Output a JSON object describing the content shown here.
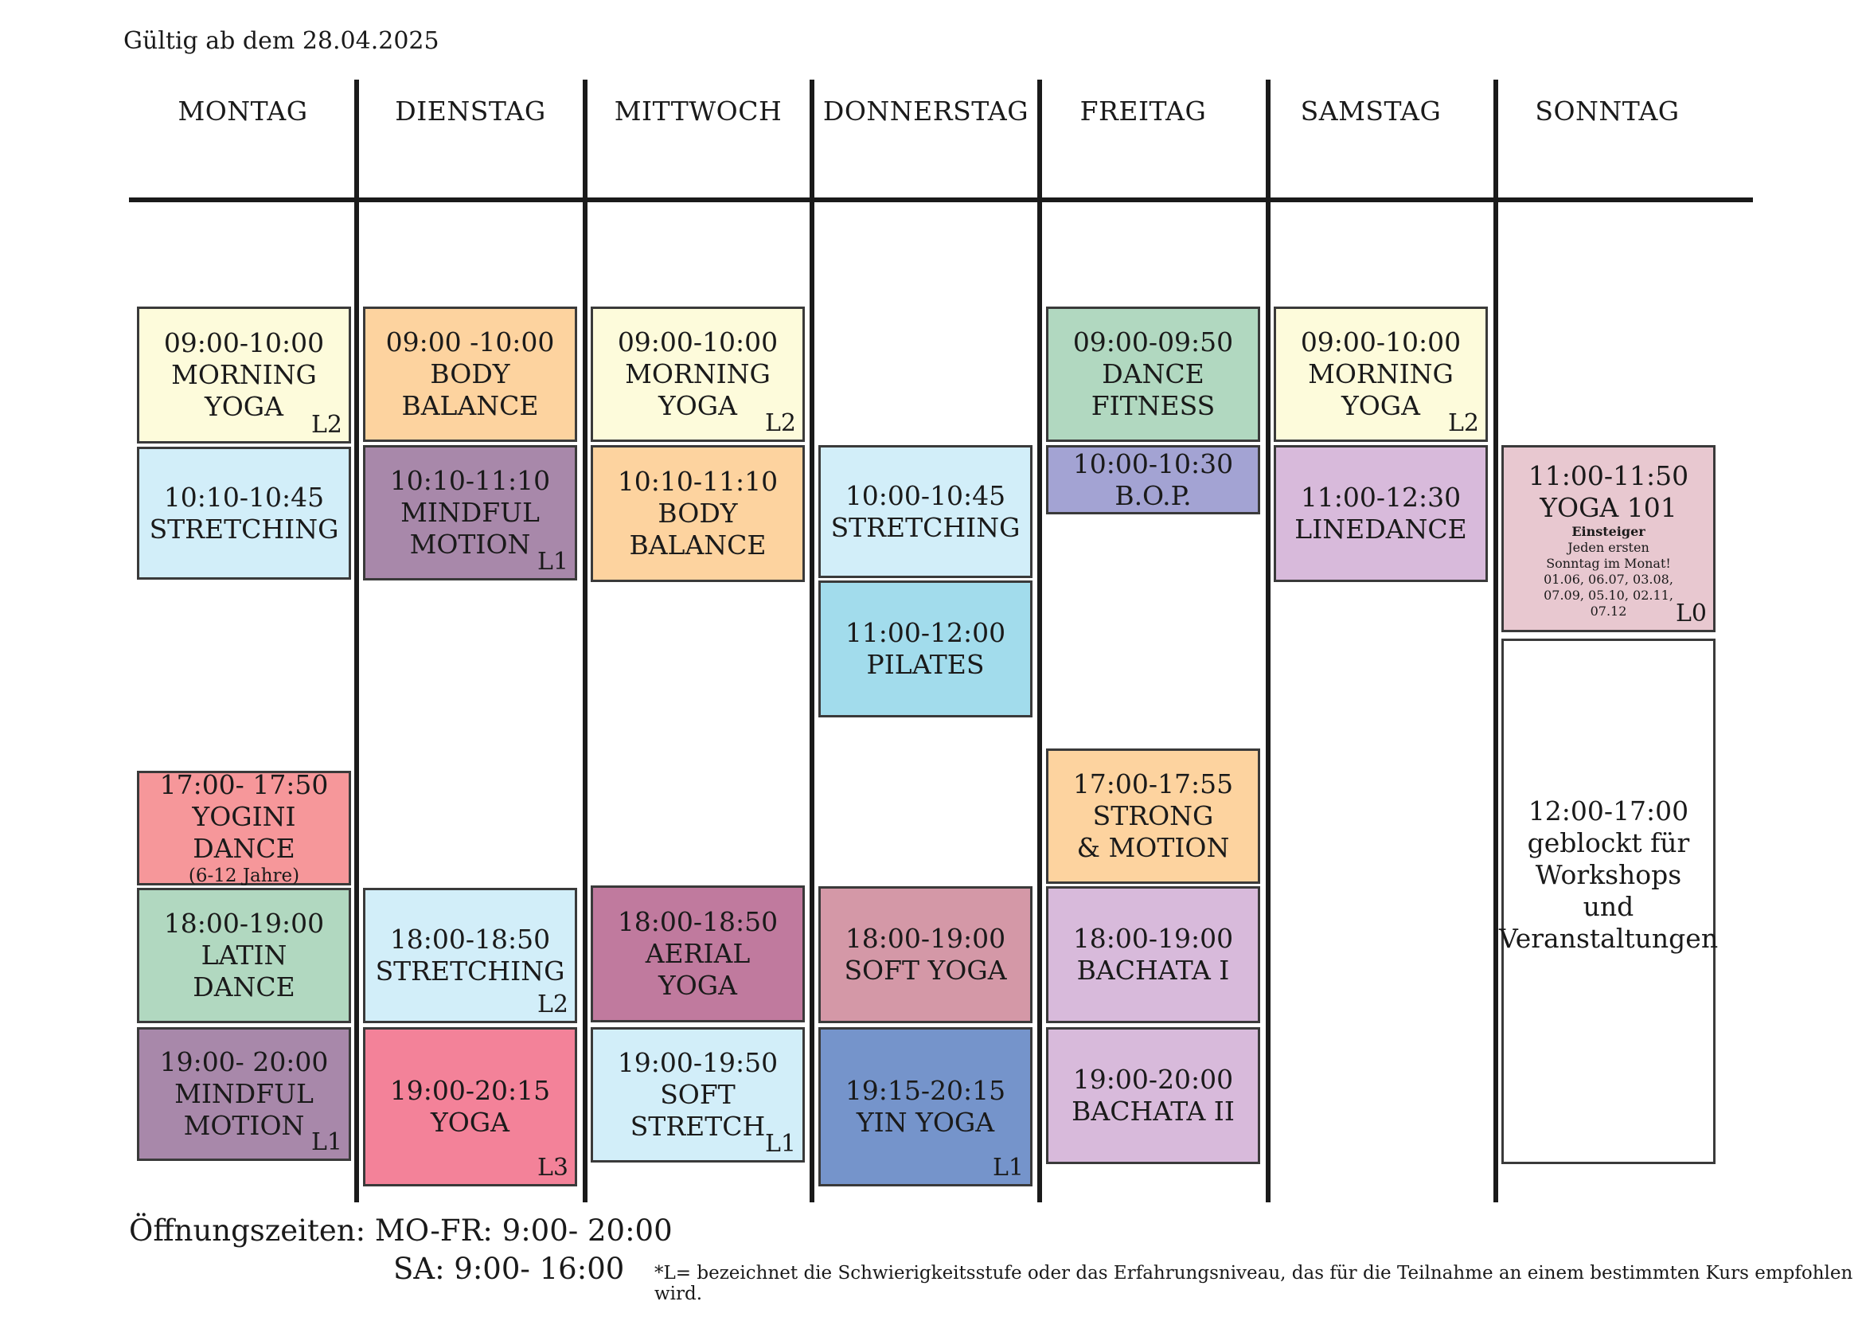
{
  "valid_from": "Gültig ab dem 28.04.2025",
  "days": [
    "MONTAG",
    "DIENSTAG",
    "MITTWOCH",
    "DONNERSTAG",
    "FREITAG",
    "SAMSTAG",
    "SONNTAG"
  ],
  "classes": {
    "mon_1": {
      "time": "09:00-10:00",
      "line1": "MORNING",
      "line2": "YOGA",
      "level": "L2"
    },
    "mon_2": {
      "time": "10:10-10:45",
      "line1": "STRETCHING"
    },
    "mon_3": {
      "time": "17:00- 17:50",
      "line1": "YOGINI DANCE",
      "sub": "(6-12 Jahre)"
    },
    "mon_4": {
      "time": "18:00-19:00",
      "line1": "LATIN",
      "line2": "DANCE"
    },
    "mon_5": {
      "time": "19:00- 20:00",
      "line1": "MINDFUL",
      "line2": "MOTION",
      "level": "L1"
    },
    "tue_1": {
      "time": "09:00 -10:00",
      "line1": "BODY",
      "line2": "BALANCE"
    },
    "tue_2": {
      "time": "10:10-11:10",
      "line1": "MINDFUL",
      "line2": "MOTION",
      "level": "L1"
    },
    "tue_3": {
      "time": "18:00-18:50",
      "line1": "STRETCHING",
      "level": "L2"
    },
    "tue_4": {
      "time": "19:00-20:15",
      "line1": "YOGA",
      "level": "L3"
    },
    "wed_1": {
      "time": "09:00-10:00",
      "line1": "MORNING",
      "line2": "YOGA",
      "level": "L2"
    },
    "wed_2": {
      "time": "10:10-11:10",
      "line1": "BODY",
      "line2": "BALANCE"
    },
    "wed_3": {
      "time": "18:00-18:50",
      "line1": "AERIAL",
      "line2": "YOGA"
    },
    "wed_4": {
      "time": "19:00-19:50",
      "line1": "SOFT",
      "line2": "STRETCH",
      "level": "L1"
    },
    "thu_1": {
      "time": "10:00-10:45",
      "line1": "STRETCHING"
    },
    "thu_2": {
      "time": "11:00-12:00",
      "line1": "PILATES"
    },
    "thu_3": {
      "time": "18:00-19:00",
      "line1": "SOFT YOGA"
    },
    "thu_4": {
      "time": "19:15-20:15",
      "line1": "YIN YOGA",
      "level": "L1"
    },
    "fri_1": {
      "time": "09:00-09:50",
      "line1": "DANCE",
      "line2": "FITNESS"
    },
    "fri_2": {
      "time": "10:00-10:30",
      "line1": "B.O.P."
    },
    "fri_3": {
      "time": "17:00-17:55",
      "line1": "STRONG",
      "line2": "& MOTION"
    },
    "fri_4": {
      "time": "18:00-19:00",
      "line1": "BACHATA I"
    },
    "fri_5": {
      "time": "19:00-20:00",
      "line1": "BACHATA II"
    },
    "sat_1": {
      "time": "09:00-10:00",
      "line1": "MORNING",
      "line2": "YOGA",
      "level": "L2"
    },
    "sat_2": {
      "time": "11:00-12:30",
      "line1": "LINEDANCE"
    },
    "sun_1": {
      "time": "11:00-11:50",
      "line1": "YOGA 101",
      "level": "L0",
      "note_bold": "Einsteiger",
      "note_lines": [
        "Jeden ersten",
        "Sonntag im Monat!",
        "01.06, 06.07, 03.08,",
        "07.09, 05.10, 02.11,",
        "07.12"
      ]
    },
    "sun_2": {
      "time": "12:00-17:00",
      "lines": [
        "geblockt für",
        "Workshops",
        "und",
        "Veranstaltungen"
      ]
    }
  },
  "colors": {
    "light_yellow": "#fdfbdb",
    "light_blue": "#d2eef9",
    "orange": "#fdd39f",
    "purple": "#a888aa",
    "green": "#b1d8c0",
    "salmon": "#f6979a",
    "pink_red": "#f38299",
    "mauve": "#c07a9e",
    "dusty_pink": "#d498a7",
    "blue_pilates": "#a2dcec",
    "steel_blue": "#7594cb",
    "periwinkle": "#a3a3d3",
    "lilac": "#d8badb",
    "pale_pink": "#e8c8d0"
  },
  "opening_hours": {
    "line1": "Öffnungszeiten: MO-FR: 9:00- 20:00",
    "line2": "SA: 9:00- 16:00"
  },
  "footnote": "*L=  bezeichnet die Schwierigkeitsstufe oder das Erfahrungsniveau, das für die Teilnahme an einem bestimmten Kurs empfohlen wird."
}
